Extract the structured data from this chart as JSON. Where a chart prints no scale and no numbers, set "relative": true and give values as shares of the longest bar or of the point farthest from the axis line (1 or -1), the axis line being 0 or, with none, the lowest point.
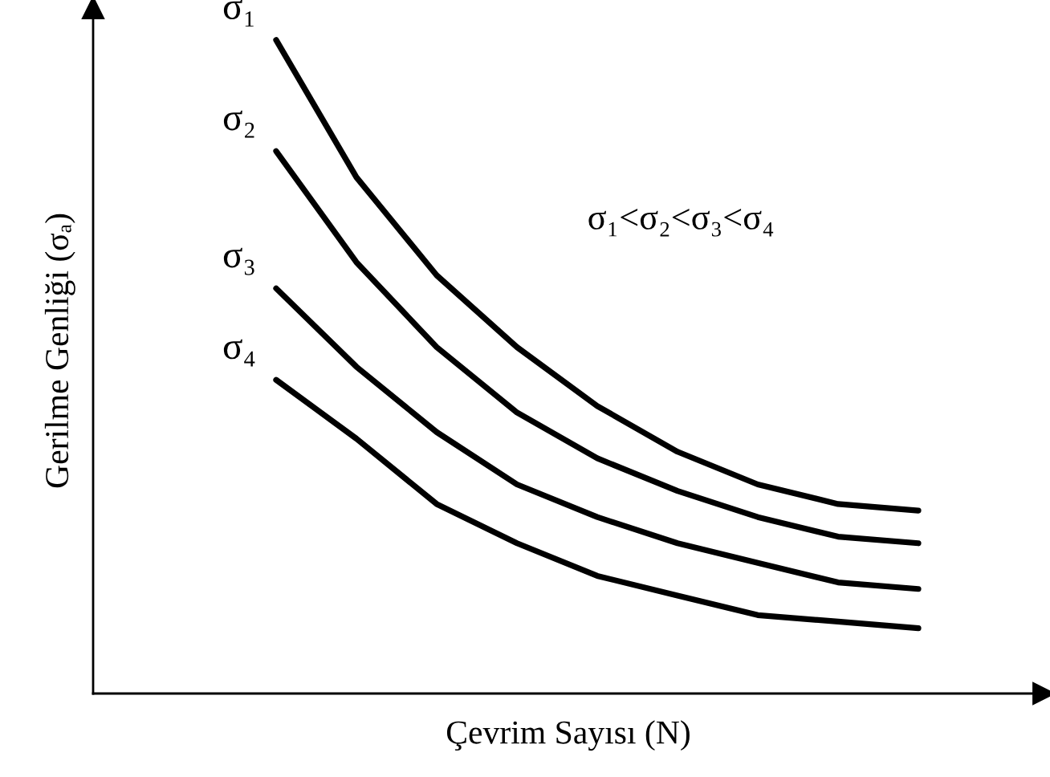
{
  "chart_data": {
    "type": "line",
    "relative": true,
    "xlabel": "Çevrim Sayısı (N)",
    "ylabel": "Gerilme Genliği (σₐ)",
    "categories": [
      null,
      null,
      null,
      null,
      null,
      null,
      null,
      null,
      null
    ],
    "tick_labels": false,
    "annotations": [
      "σ₁<σ₂<σ₃<σ₄"
    ],
    "series": [
      {
        "name": "σ₁",
        "color": "#000000",
        "values": [
          1,
          0.79,
          0.64,
          0.53,
          0.44,
          0.37,
          0.32,
          0.29,
          0.28
        ]
      },
      {
        "name": "σ₂",
        "color": "#000000",
        "values": [
          0.83,
          0.66,
          0.53,
          0.43,
          0.36,
          0.31,
          0.27,
          0.24,
          0.23
        ]
      },
      {
        "name": "σ₃",
        "color": "#000000",
        "values": [
          0.62,
          0.5,
          0.4,
          0.32,
          0.27,
          0.23,
          0.2,
          0.17,
          0.16
        ]
      },
      {
        "name": "σ₄",
        "color": "#000000",
        "values": [
          0.48,
          0.39,
          0.29,
          0.23,
          0.18,
          0.15,
          0.12,
          0.11,
          0.1
        ]
      }
    ]
  }
}
